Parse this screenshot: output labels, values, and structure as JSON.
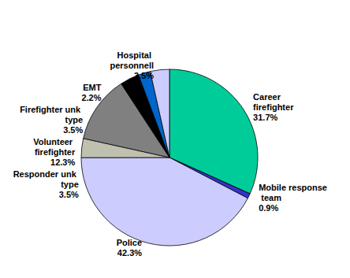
{
  "chart_data": {
    "type": "pie",
    "categories": [
      "Career firefighter",
      "Mobile response team",
      "Police",
      "Responder unk type",
      "Volunteer firefighter",
      "Firefighter unk type",
      "EMT",
      "Hospital personnell"
    ],
    "values": [
      31.7,
      0.9,
      42.3,
      3.5,
      12.3,
      3.5,
      2.2,
      3.5
    ],
    "value_labels": [
      "31.7%",
      "0.9%",
      "42.3%",
      "3.5%",
      "12.3%",
      "3.5%",
      "2.2%",
      "3.5%"
    ],
    "colors": [
      "#00cc99",
      "#3333cc",
      "#ccccff",
      "#c0c0b0",
      "#808080",
      "#000000",
      "#0066cc",
      "#ccccff"
    ],
    "data_labels": true
  }
}
